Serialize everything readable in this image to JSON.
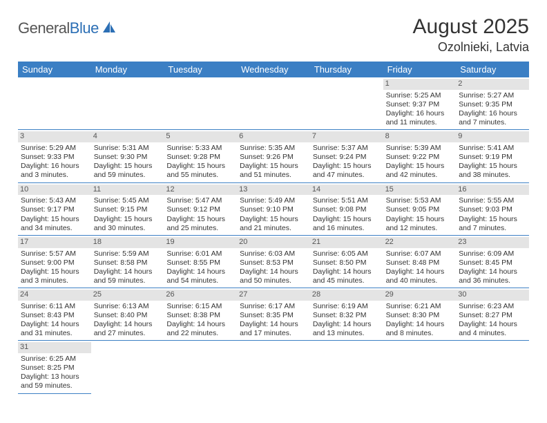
{
  "logo": {
    "general": "General",
    "blue": "Blue"
  },
  "title": "August 2025",
  "location": "Ozolnieki, Latvia",
  "colors": {
    "header_bg": "#3b7fc4",
    "header_fg": "#ffffff",
    "daynum_bg": "#e4e4e4",
    "border": "#3b7fc4",
    "text": "#333333",
    "logo_blue": "#2c6fb5"
  },
  "weekdays": [
    "Sunday",
    "Monday",
    "Tuesday",
    "Wednesday",
    "Thursday",
    "Friday",
    "Saturday"
  ],
  "leading_blanks": 5,
  "days": [
    {
      "n": "1",
      "sr": "Sunrise: 5:25 AM",
      "ss": "Sunset: 9:37 PM",
      "dl1": "Daylight: 16 hours",
      "dl2": "and 11 minutes."
    },
    {
      "n": "2",
      "sr": "Sunrise: 5:27 AM",
      "ss": "Sunset: 9:35 PM",
      "dl1": "Daylight: 16 hours",
      "dl2": "and 7 minutes."
    },
    {
      "n": "3",
      "sr": "Sunrise: 5:29 AM",
      "ss": "Sunset: 9:33 PM",
      "dl1": "Daylight: 16 hours",
      "dl2": "and 3 minutes."
    },
    {
      "n": "4",
      "sr": "Sunrise: 5:31 AM",
      "ss": "Sunset: 9:30 PM",
      "dl1": "Daylight: 15 hours",
      "dl2": "and 59 minutes."
    },
    {
      "n": "5",
      "sr": "Sunrise: 5:33 AM",
      "ss": "Sunset: 9:28 PM",
      "dl1": "Daylight: 15 hours",
      "dl2": "and 55 minutes."
    },
    {
      "n": "6",
      "sr": "Sunrise: 5:35 AM",
      "ss": "Sunset: 9:26 PM",
      "dl1": "Daylight: 15 hours",
      "dl2": "and 51 minutes."
    },
    {
      "n": "7",
      "sr": "Sunrise: 5:37 AM",
      "ss": "Sunset: 9:24 PM",
      "dl1": "Daylight: 15 hours",
      "dl2": "and 47 minutes."
    },
    {
      "n": "8",
      "sr": "Sunrise: 5:39 AM",
      "ss": "Sunset: 9:22 PM",
      "dl1": "Daylight: 15 hours",
      "dl2": "and 42 minutes."
    },
    {
      "n": "9",
      "sr": "Sunrise: 5:41 AM",
      "ss": "Sunset: 9:19 PM",
      "dl1": "Daylight: 15 hours",
      "dl2": "and 38 minutes."
    },
    {
      "n": "10",
      "sr": "Sunrise: 5:43 AM",
      "ss": "Sunset: 9:17 PM",
      "dl1": "Daylight: 15 hours",
      "dl2": "and 34 minutes."
    },
    {
      "n": "11",
      "sr": "Sunrise: 5:45 AM",
      "ss": "Sunset: 9:15 PM",
      "dl1": "Daylight: 15 hours",
      "dl2": "and 30 minutes."
    },
    {
      "n": "12",
      "sr": "Sunrise: 5:47 AM",
      "ss": "Sunset: 9:12 PM",
      "dl1": "Daylight: 15 hours",
      "dl2": "and 25 minutes."
    },
    {
      "n": "13",
      "sr": "Sunrise: 5:49 AM",
      "ss": "Sunset: 9:10 PM",
      "dl1": "Daylight: 15 hours",
      "dl2": "and 21 minutes."
    },
    {
      "n": "14",
      "sr": "Sunrise: 5:51 AM",
      "ss": "Sunset: 9:08 PM",
      "dl1": "Daylight: 15 hours",
      "dl2": "and 16 minutes."
    },
    {
      "n": "15",
      "sr": "Sunrise: 5:53 AM",
      "ss": "Sunset: 9:05 PM",
      "dl1": "Daylight: 15 hours",
      "dl2": "and 12 minutes."
    },
    {
      "n": "16",
      "sr": "Sunrise: 5:55 AM",
      "ss": "Sunset: 9:03 PM",
      "dl1": "Daylight: 15 hours",
      "dl2": "and 7 minutes."
    },
    {
      "n": "17",
      "sr": "Sunrise: 5:57 AM",
      "ss": "Sunset: 9:00 PM",
      "dl1": "Daylight: 15 hours",
      "dl2": "and 3 minutes."
    },
    {
      "n": "18",
      "sr": "Sunrise: 5:59 AM",
      "ss": "Sunset: 8:58 PM",
      "dl1": "Daylight: 14 hours",
      "dl2": "and 59 minutes."
    },
    {
      "n": "19",
      "sr": "Sunrise: 6:01 AM",
      "ss": "Sunset: 8:55 PM",
      "dl1": "Daylight: 14 hours",
      "dl2": "and 54 minutes."
    },
    {
      "n": "20",
      "sr": "Sunrise: 6:03 AM",
      "ss": "Sunset: 8:53 PM",
      "dl1": "Daylight: 14 hours",
      "dl2": "and 50 minutes."
    },
    {
      "n": "21",
      "sr": "Sunrise: 6:05 AM",
      "ss": "Sunset: 8:50 PM",
      "dl1": "Daylight: 14 hours",
      "dl2": "and 45 minutes."
    },
    {
      "n": "22",
      "sr": "Sunrise: 6:07 AM",
      "ss": "Sunset: 8:48 PM",
      "dl1": "Daylight: 14 hours",
      "dl2": "and 40 minutes."
    },
    {
      "n": "23",
      "sr": "Sunrise: 6:09 AM",
      "ss": "Sunset: 8:45 PM",
      "dl1": "Daylight: 14 hours",
      "dl2": "and 36 minutes."
    },
    {
      "n": "24",
      "sr": "Sunrise: 6:11 AM",
      "ss": "Sunset: 8:43 PM",
      "dl1": "Daylight: 14 hours",
      "dl2": "and 31 minutes."
    },
    {
      "n": "25",
      "sr": "Sunrise: 6:13 AM",
      "ss": "Sunset: 8:40 PM",
      "dl1": "Daylight: 14 hours",
      "dl2": "and 27 minutes."
    },
    {
      "n": "26",
      "sr": "Sunrise: 6:15 AM",
      "ss": "Sunset: 8:38 PM",
      "dl1": "Daylight: 14 hours",
      "dl2": "and 22 minutes."
    },
    {
      "n": "27",
      "sr": "Sunrise: 6:17 AM",
      "ss": "Sunset: 8:35 PM",
      "dl1": "Daylight: 14 hours",
      "dl2": "and 17 minutes."
    },
    {
      "n": "28",
      "sr": "Sunrise: 6:19 AM",
      "ss": "Sunset: 8:32 PM",
      "dl1": "Daylight: 14 hours",
      "dl2": "and 13 minutes."
    },
    {
      "n": "29",
      "sr": "Sunrise: 6:21 AM",
      "ss": "Sunset: 8:30 PM",
      "dl1": "Daylight: 14 hours",
      "dl2": "and 8 minutes."
    },
    {
      "n": "30",
      "sr": "Sunrise: 6:23 AM",
      "ss": "Sunset: 8:27 PM",
      "dl1": "Daylight: 14 hours",
      "dl2": "and 4 minutes."
    },
    {
      "n": "31",
      "sr": "Sunrise: 6:25 AM",
      "ss": "Sunset: 8:25 PM",
      "dl1": "Daylight: 13 hours",
      "dl2": "and 59 minutes."
    }
  ]
}
